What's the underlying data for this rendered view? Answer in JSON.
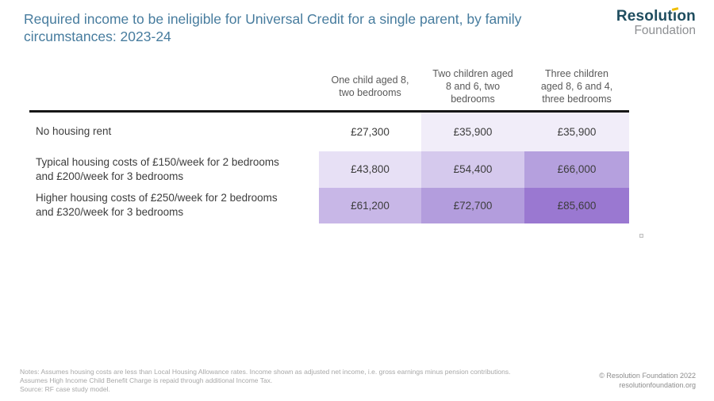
{
  "title": {
    "line1": "Required income to be ineligible for Universal Credit for a single parent, by family",
    "line2": "circumstances: 2023-24"
  },
  "logo": {
    "name_part1": "Resolut",
    "name_i": "ı",
    "name_part2": "on",
    "line2": "Foundation"
  },
  "colors": {
    "title_blue": "#477C9E",
    "logo_teal": "#1F4D5F",
    "logo_yellow": "#EFBE00",
    "logo_gray": "#8E9093",
    "header_rule_black": "#161616",
    "header_text_gray": "#595959",
    "body_text": "#3D3D3D",
    "notes_gray": "#A8A8A8"
  },
  "table": {
    "column_headers": [
      [
        "One child aged 8,",
        "two bedrooms"
      ],
      [
        "Two children aged",
        "8 and 6, two",
        "bedrooms"
      ],
      [
        "Three children",
        "aged 8, 6 and 4,",
        "three bedrooms"
      ]
    ],
    "rows": [
      {
        "label_line1": "No housing rent",
        "label_line2": "",
        "cells": [
          {
            "value": "£27,300",
            "bg": "#FFFFFF"
          },
          {
            "value": "£35,900",
            "bg": "#F1EDF9"
          },
          {
            "value": "£35,900",
            "bg": "#F1EDF9"
          }
        ]
      },
      {
        "label_line1": "Typical housing costs of £150/week for 2 bedrooms",
        "label_line2": "and £200/week for 3 bedrooms",
        "cells": [
          {
            "value": "£43,800",
            "bg": "#E7E0F5"
          },
          {
            "value": "£54,400",
            "bg": "#D5C9ED"
          },
          {
            "value": "£66,000",
            "bg": "#B5A0DE"
          }
        ]
      },
      {
        "label_line1": "Higher housing costs of £250/week for 2 bedrooms",
        "label_line2": "and £320/week for 3 bedrooms",
        "cells": [
          {
            "value": "£61,200",
            "bg": "#C8B7E7"
          },
          {
            "value": "£72,700",
            "bg": "#B39DDD"
          },
          {
            "value": "£85,600",
            "bg": "#9A78D1"
          }
        ]
      }
    ]
  },
  "footer": {
    "notes_line1": "Notes: Assumes housing costs are less than Local Housing Allowance rates. Income shown as adjusted net income, i.e. gross earnings minus pension contributions.",
    "notes_line2": "Assumes High Income Child Benefit Charge is repaid through additional Income Tax.",
    "notes_line3": "Source: RF case study model.",
    "copyright_line1": "© Resolution Foundation 2022",
    "copyright_line2": "resolutionfoundation.org"
  },
  "chart_data": {
    "type": "table",
    "title": "Required income to be ineligible for Universal Credit for a single parent, by family circumstances: 2023-24",
    "columns": [
      "One child aged 8, two bedrooms",
      "Two children aged 8 and 6, two bedrooms",
      "Three children aged 8, 6 and 4, three bedrooms"
    ],
    "rows": [
      "No housing rent",
      "Typical housing costs of £150/week for 2 bedrooms and £200/week for 3 bedrooms",
      "Higher housing costs of £250/week for 2 bedrooms and £320/week for 3 bedrooms"
    ],
    "values": [
      [
        27300,
        35900,
        35900
      ],
      [
        43800,
        54400,
        66000
      ],
      [
        61200,
        72700,
        85600
      ]
    ],
    "value_format": "£#,###",
    "cell_shading": "purple intensity scales with value (white lowest, dark purple highest)",
    "notes": "Assumes housing costs are less than Local Housing Allowance rates. Income shown as adjusted net income, i.e. gross earnings minus pension contributions. Assumes High Income Child Benefit Charge is repaid through additional Income Tax.",
    "source": "RF case study model"
  }
}
